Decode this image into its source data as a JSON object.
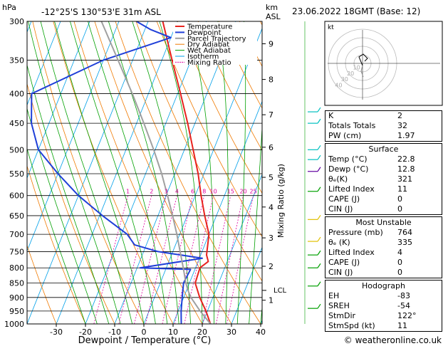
{
  "header": {
    "axis_unit_left": "hPa",
    "location": "-12°25'S  130°53'E  31m  ASL",
    "km_label": "km",
    "asl_label": "ASL",
    "datetime": "23.06.2022  18GMT  (Base: 12)"
  },
  "legend": [
    "Temperature",
    "Dewpoint",
    "Parcel Trajectory",
    "Dry Adiabat",
    "Wet Adiabat",
    "Isotherm",
    "Mixing Ratio"
  ],
  "colors": {
    "temperature": "#e8231e",
    "dewpoint": "#1f3fd8",
    "parcel": "#a0a0a0",
    "dry_adiabat": "#f07a00",
    "wet_adiabat": "#00a000",
    "isotherm": "#00a0e8",
    "mixing_ratio": "#e000a0"
  },
  "chart_data": {
    "type": "line",
    "title": "",
    "xlabel": "Dewpoint / Temperature (°C)",
    "ylabel": "hPa",
    "xlim": [
      -35,
      40
    ],
    "x_ticks": [
      -30,
      -20,
      -10,
      0,
      10,
      20,
      30,
      40
    ],
    "pressure_levels": [
      300,
      350,
      400,
      450,
      500,
      550,
      600,
      650,
      700,
      750,
      800,
      850,
      900,
      950,
      1000
    ],
    "height_km_ticks": [
      {
        "label": "1",
        "p": 910
      },
      {
        "label": "2",
        "p": 795
      },
      {
        "label": "3",
        "p": 710
      },
      {
        "label": "4",
        "p": 628
      },
      {
        "label": "5",
        "p": 558
      },
      {
        "label": "6",
        "p": 495
      },
      {
        "label": "7",
        "p": 435
      },
      {
        "label": "8",
        "p": 378
      },
      {
        "label": "9",
        "p": 328
      }
    ],
    "lcl_label": "LCL",
    "lcl_p": 875,
    "mixing_ratio_axis_label": "Mixing Ratio (g/kg)",
    "mixing_ratio_labels": [
      "1",
      "2",
      "3",
      "4",
      "6",
      "8",
      "10",
      "15",
      "20",
      "25"
    ],
    "series": [
      {
        "name": "Temperature",
        "points": [
          {
            "p": 1000,
            "t": 22.8
          },
          {
            "p": 950,
            "t": 19.5
          },
          {
            "p": 900,
            "t": 15.5
          },
          {
            "p": 850,
            "t": 12.0
          },
          {
            "p": 800,
            "t": 11.5
          },
          {
            "p": 780,
            "t": 13.5
          },
          {
            "p": 760,
            "t": 12.0
          },
          {
            "p": 700,
            "t": 10.0
          },
          {
            "p": 650,
            "t": 6.0
          },
          {
            "p": 600,
            "t": 2.0
          },
          {
            "p": 550,
            "t": -2.0
          },
          {
            "p": 500,
            "t": -7.0
          },
          {
            "p": 450,
            "t": -12.5
          },
          {
            "p": 400,
            "t": -19.0
          },
          {
            "p": 350,
            "t": -26.5
          },
          {
            "p": 300,
            "t": -35.0
          }
        ]
      },
      {
        "name": "Dewpoint",
        "points": [
          {
            "p": 1000,
            "t": 12.8
          },
          {
            "p": 950,
            "t": 11.0
          },
          {
            "p": 900,
            "t": 9.5
          },
          {
            "p": 850,
            "t": 8.0
          },
          {
            "p": 805,
            "t": 8.5
          },
          {
            "p": 800,
            "t": -9.0
          },
          {
            "p": 770,
            "t": 11.0
          },
          {
            "p": 750,
            "t": -5.0
          },
          {
            "p": 730,
            "t": -14.0
          },
          {
            "p": 700,
            "t": -18.0
          },
          {
            "p": 650,
            "t": -29.0
          },
          {
            "p": 600,
            "t": -40.0
          },
          {
            "p": 550,
            "t": -50.0
          },
          {
            "p": 500,
            "t": -60.0
          },
          {
            "p": 450,
            "t": -66.0
          },
          {
            "p": 400,
            "t": -70.0
          },
          {
            "p": 350,
            "t": -50.0
          },
          {
            "p": 320,
            "t": -30.0
          },
          {
            "p": 310,
            "t": -38.0
          },
          {
            "p": 300,
            "t": -44.0
          }
        ]
      },
      {
        "name": "Parcel Trajectory",
        "points": [
          {
            "p": 1000,
            "t": 22.8
          },
          {
            "p": 950,
            "t": 17.5
          },
          {
            "p": 900,
            "t": 12.5
          },
          {
            "p": 875,
            "t": 10.5
          },
          {
            "p": 850,
            "t": 8.8
          },
          {
            "p": 800,
            "t": 5.8
          },
          {
            "p": 750,
            "t": 2.5
          },
          {
            "p": 700,
            "t": -1.0
          },
          {
            "p": 650,
            "t": -5.0
          },
          {
            "p": 600,
            "t": -9.5
          },
          {
            "p": 550,
            "t": -14.5
          },
          {
            "p": 500,
            "t": -20.5
          },
          {
            "p": 450,
            "t": -27.5
          },
          {
            "p": 400,
            "t": -35.5
          },
          {
            "p": 350,
            "t": -45.0
          },
          {
            "p": 300,
            "t": -56.0
          }
        ]
      }
    ]
  },
  "hodograph": {
    "unit_label": "kt",
    "ring_labels": [
      "10",
      "20",
      "30",
      "40"
    ]
  },
  "indices": {
    "top": [
      {
        "label": "K",
        "value": "2"
      },
      {
        "label": "Totals Totals",
        "value": "32"
      },
      {
        "label": "PW (cm)",
        "value": "1.97"
      }
    ],
    "surface": {
      "title": "Surface",
      "rows": [
        {
          "label": "Temp (°C)",
          "value": "22.8"
        },
        {
          "label": "Dewp (°C)",
          "value": "12.8"
        },
        {
          "label": "θₑ(K)",
          "value": "321"
        },
        {
          "label": "Lifted Index",
          "value": "11"
        },
        {
          "label": "CAPE (J)",
          "value": "0"
        },
        {
          "label": "CIN (J)",
          "value": "0"
        }
      ]
    },
    "most_unstable": {
      "title": "Most Unstable",
      "rows": [
        {
          "label": "Pressure (mb)",
          "value": "764"
        },
        {
          "label": "θₑ (K)",
          "value": "335"
        },
        {
          "label": "Lifted Index",
          "value": "4"
        },
        {
          "label": "CAPE (J)",
          "value": "0"
        },
        {
          "label": "CIN (J)",
          "value": "0"
        }
      ]
    },
    "hodograph": {
      "title": "Hodograph",
      "rows": [
        {
          "label": "EH",
          "value": "-83"
        },
        {
          "label": "SREH",
          "value": "-54"
        },
        {
          "label": "StmDir",
          "value": "122°"
        },
        {
          "label": "StmSpd (kt)",
          "value": "11"
        }
      ]
    }
  },
  "copyright": "© weatheronline.co.uk"
}
